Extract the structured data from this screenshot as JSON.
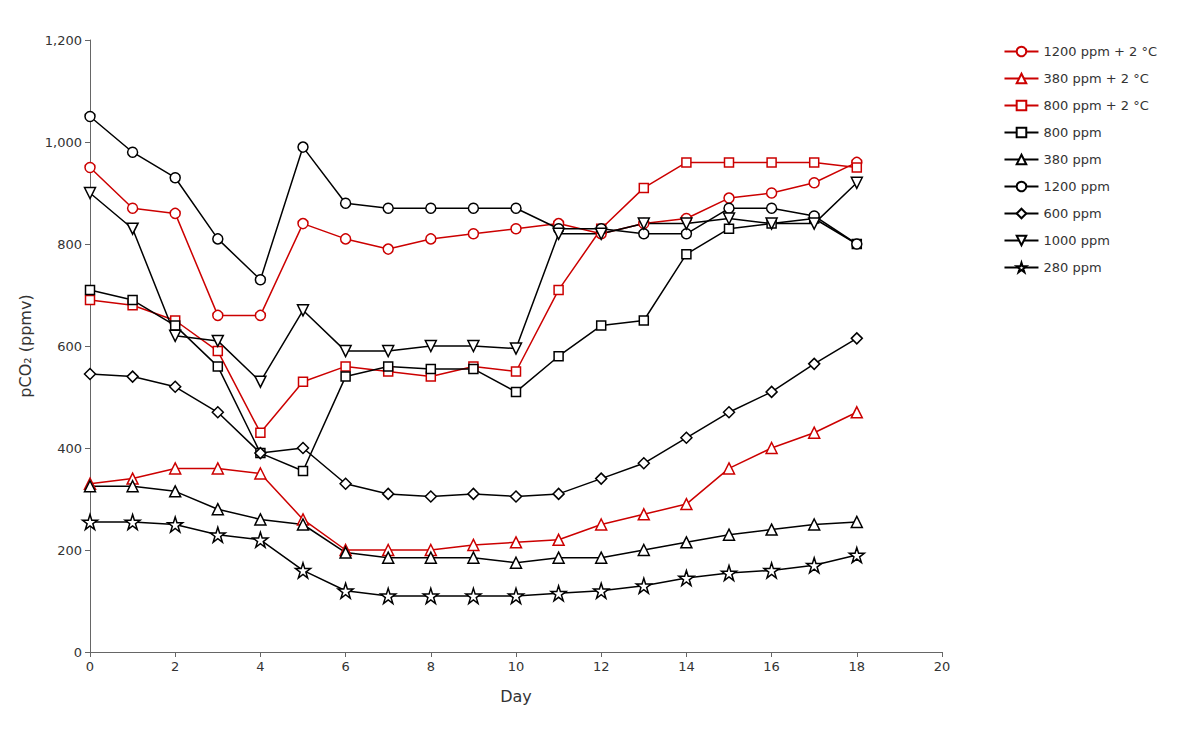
{
  "chart_data": {
    "type": "line",
    "x_label": "Day",
    "y_label": "pCO₂ (ppmv)",
    "x": [
      0,
      1,
      2,
      3,
      4,
      5,
      6,
      7,
      8,
      9,
      10,
      11,
      12,
      13,
      14,
      15,
      16,
      17,
      18
    ],
    "series": [
      {
        "name": "1200 ppm + 2 °C",
        "color": "#cc0000",
        "marker": "circle",
        "values": [
          950,
          870,
          860,
          660,
          660,
          840,
          810,
          790,
          810,
          820,
          830,
          840,
          820,
          840,
          850,
          890,
          900,
          920,
          960
        ]
      },
      {
        "name": "380 ppm + 2 °C",
        "color": "#cc0000",
        "marker": "triangle",
        "values": [
          330,
          340,
          360,
          360,
          350,
          260,
          200,
          200,
          200,
          210,
          215,
          220,
          250,
          270,
          290,
          360,
          400,
          430,
          470
        ]
      },
      {
        "name": "800 ppm + 2 °C",
        "color": "#cc0000",
        "marker": "square",
        "values": [
          690,
          680,
          650,
          590,
          430,
          530,
          560,
          550,
          540,
          560,
          550,
          710,
          830,
          910,
          960,
          960,
          960,
          960,
          950
        ]
      },
      {
        "name": "800 ppm",
        "color": "#000000",
        "marker": "square",
        "values": [
          710,
          690,
          640,
          560,
          390,
          355,
          540,
          560,
          555,
          555,
          510,
          580,
          640,
          650,
          780,
          830,
          840,
          850,
          800
        ]
      },
      {
        "name": "380 ppm",
        "color": "#000000",
        "marker": "triangle",
        "values": [
          325,
          325,
          315,
          280,
          260,
          250,
          195,
          185,
          185,
          185,
          175,
          185,
          185,
          200,
          215,
          230,
          240,
          250,
          255
        ]
      },
      {
        "name": "1200 ppm",
        "color": "#000000",
        "marker": "circle",
        "values": [
          1050,
          980,
          930,
          810,
          730,
          990,
          880,
          870,
          870,
          870,
          870,
          830,
          830,
          820,
          820,
          870,
          870,
          855,
          800
        ]
      },
      {
        "name": "600 ppm",
        "color": "#000000",
        "marker": "diamond",
        "values": [
          545,
          540,
          520,
          470,
          390,
          400,
          330,
          310,
          305,
          310,
          305,
          310,
          340,
          370,
          420,
          470,
          510,
          565,
          615
        ]
      },
      {
        "name": "1000 ppm",
        "color": "#000000",
        "marker": "triangle-down",
        "values": [
          900,
          830,
          620,
          610,
          530,
          670,
          590,
          590,
          600,
          600,
          595,
          820,
          820,
          840,
          840,
          850,
          840,
          840,
          920
        ]
      },
      {
        "name": "280 ppm",
        "color": "#000000",
        "marker": "star",
        "values": [
          255,
          255,
          250,
          230,
          220,
          160,
          120,
          110,
          110,
          110,
          110,
          115,
          120,
          130,
          145,
          155,
          160,
          170,
          190
        ]
      }
    ],
    "xlim": [
      0,
      20
    ],
    "ylim": [
      0,
      1200
    ],
    "xticks": [
      0,
      2,
      4,
      6,
      8,
      10,
      12,
      14,
      16,
      18,
      20
    ],
    "yticks": [
      0,
      200,
      400,
      600,
      800,
      1000,
      1200
    ],
    "grid": false,
    "legend": "right"
  }
}
